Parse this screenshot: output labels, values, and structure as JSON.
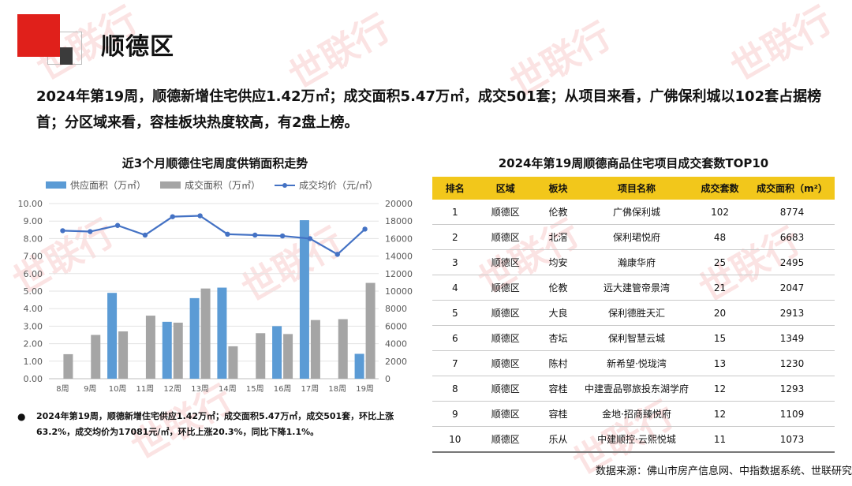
{
  "page_title": "顺德区",
  "summary": "2024年第19周，顺德新增住宅供应1.42万㎡；成交面积5.47万㎡，成交501套；从项目来看，广佛保利城以102套占据榜首；分区域来看，容桂板块热度较高，有2盘上榜。",
  "watermark": "世联行",
  "chart_data": {
    "type": "bar",
    "title": "近3个月顺德住宅周度供销面积走势",
    "categories": [
      "8周",
      "9周",
      "10周",
      "11周",
      "12周",
      "13周",
      "14周",
      "15周",
      "16周",
      "17周",
      "18周",
      "19周"
    ],
    "series": [
      {
        "name": "供应面积（万㎡）",
        "type": "bar",
        "axis": "left",
        "color": "#5b9bd5",
        "values": [
          0,
          0,
          4.9,
          0,
          3.25,
          4.6,
          5.2,
          0,
          3.0,
          9.05,
          0,
          1.42
        ]
      },
      {
        "name": "成交面积（万㎡）",
        "type": "bar",
        "axis": "left",
        "color": "#a5a5a5",
        "values": [
          1.4,
          2.5,
          2.7,
          3.6,
          3.2,
          5.15,
          1.85,
          2.6,
          2.55,
          3.35,
          3.4,
          5.47
        ]
      },
      {
        "name": "成交均价（元/㎡）",
        "type": "line",
        "axis": "right",
        "color": "#4472c4",
        "values": [
          16900,
          16800,
          17500,
          16400,
          18500,
          18600,
          16500,
          16400,
          16300,
          16000,
          14200,
          17081
        ]
      }
    ],
    "y_left": {
      "min": 0,
      "max": 10,
      "step": 1,
      "ticks": [
        "0.00",
        "1.00",
        "2.00",
        "3.00",
        "4.00",
        "5.00",
        "6.00",
        "7.00",
        "8.00",
        "9.00",
        "10.00"
      ]
    },
    "y_right": {
      "min": 0,
      "max": 20000,
      "step": 2000,
      "ticks": [
        "0",
        "2000",
        "4000",
        "6000",
        "8000",
        "10000",
        "12000",
        "14000",
        "16000",
        "18000",
        "20000"
      ]
    },
    "grid": true,
    "legend": "top"
  },
  "note": "2024年第19周，顺德新增住宅供应1.42万㎡；成交面积5.47万㎡，成交501套，环比上涨63.2%，成交均价为17081元/㎡，环比上涨20.3%，同比下降1.1%。",
  "table": {
    "title": "2024年第19周顺德商品住宅项目成交套数TOP10",
    "header_color": "#f2c71b",
    "headers": [
      "排名",
      "区域",
      "板块",
      "项目名称",
      "成交套数",
      "成交面积（m²）"
    ],
    "rows": [
      [
        "1",
        "顺德区",
        "伦教",
        "广佛保利城",
        "102",
        "8774"
      ],
      [
        "2",
        "顺德区",
        "北滘",
        "保利珺悦府",
        "48",
        "6683"
      ],
      [
        "3",
        "顺德区",
        "均安",
        "瀚康华府",
        "25",
        "2495"
      ],
      [
        "4",
        "顺德区",
        "伦教",
        "远大建管帝景湾",
        "21",
        "2047"
      ],
      [
        "5",
        "顺德区",
        "大良",
        "保利德胜天汇",
        "20",
        "2913"
      ],
      [
        "6",
        "顺德区",
        "杏坛",
        "保利智慧云城",
        "15",
        "1349"
      ],
      [
        "7",
        "顺德区",
        "陈村",
        "新希望·悦珑湾",
        "13",
        "1230"
      ],
      [
        "8",
        "顺德区",
        "容桂",
        "中建壹品鄂旅投东湖学府",
        "12",
        "1293"
      ],
      [
        "9",
        "顺德区",
        "容桂",
        "金地·招商臻悦府",
        "12",
        "1109"
      ],
      [
        "10",
        "顺德区",
        "乐从",
        "中建顺控·云熙悦城",
        "11",
        "1073"
      ]
    ]
  },
  "source": "数据来源：佛山市房产信息网、中指数据系统、世联研究"
}
